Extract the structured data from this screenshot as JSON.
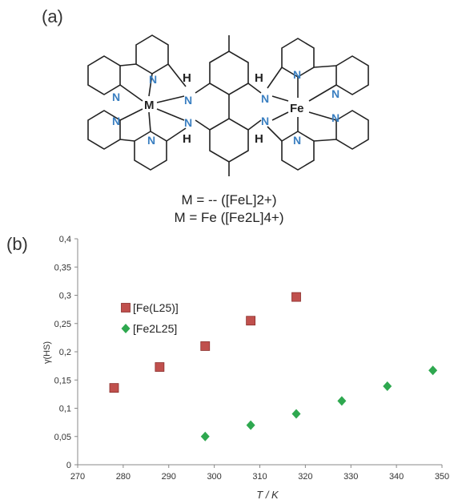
{
  "figure": {
    "panel_a_label": "(a)",
    "panel_b_label": "(b)",
    "molecule_atoms": {
      "metal_left": "M",
      "metal_right": "Fe",
      "nitrogen": "N",
      "hydrogen": "H"
    },
    "caption_line1": "M = -- ([FeL]2+)",
    "caption_line2": "M = Fe ([Fe2L]4+)"
  },
  "chart_data": {
    "type": "scatter",
    "xlabel": "T / K",
    "ylabel": "γ(HS)",
    "xlim": [
      270,
      350
    ],
    "ylim": [
      0,
      0.4
    ],
    "x_ticks": [
      "270",
      "280",
      "290",
      "300",
      "310",
      "320",
      "330",
      "340",
      "350"
    ],
    "y_ticks": [
      "0",
      "0,05",
      "0,1",
      "0,15",
      "0,2",
      "0,25",
      "0,3",
      "0,35",
      "0,4"
    ],
    "grid": false,
    "legend_position": "left-upper",
    "series": [
      {
        "name": "[Fe(L25)]",
        "marker": "square",
        "color": "#c0504d",
        "x": [
          278,
          288,
          298,
          308,
          318
        ],
        "y": [
          0.136,
          0.173,
          0.21,
          0.255,
          0.297
        ]
      },
      {
        "name": "[Fe2L25]",
        "marker": "diamond",
        "color": "#2ea84f",
        "x": [
          298,
          308,
          318,
          328,
          338,
          348
        ],
        "y": [
          0.05,
          0.07,
          0.09,
          0.113,
          0.139,
          0.167
        ]
      }
    ]
  }
}
